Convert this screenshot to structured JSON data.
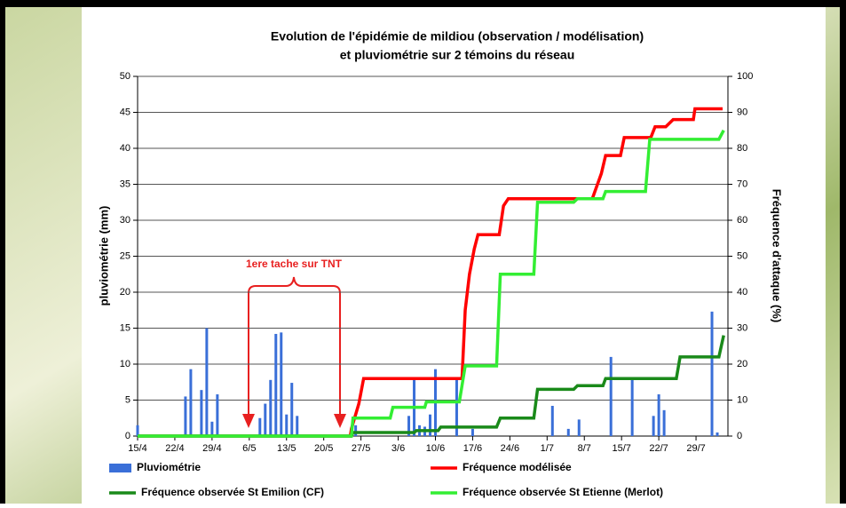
{
  "chart_data": {
    "type": "bar-line",
    "title": "Evolution de l'épidémie de mildiou (observation / modélisation)",
    "subtitle": "et pluviométrie sur 2 témoins du réseau",
    "ylabel": "pluviométrie (mm)",
    "y2label": "Fréquence d'attaque (%)",
    "annotation": "1ere tache sur TNT",
    "xlim": [
      0,
      111
    ],
    "xticks": [
      {
        "value": 0,
        "label": "15/4"
      },
      {
        "value": 7,
        "label": "22/4"
      },
      {
        "value": 14,
        "label": "29/4"
      },
      {
        "value": 21,
        "label": "6/5"
      },
      {
        "value": 28,
        "label": "13/5"
      },
      {
        "value": 35,
        "label": "20/5"
      },
      {
        "value": 42,
        "label": "27/5"
      },
      {
        "value": 49,
        "label": "3/6"
      },
      {
        "value": 56,
        "label": "10/6"
      },
      {
        "value": 63,
        "label": "17/6"
      },
      {
        "value": 70,
        "label": "24/6"
      },
      {
        "value": 77,
        "label": "1/7"
      },
      {
        "value": 84,
        "label": "8/7"
      },
      {
        "value": 91,
        "label": "15/7"
      },
      {
        "value": 98,
        "label": "22/7"
      },
      {
        "value": 105,
        "label": "29/7"
      }
    ],
    "ylim": [
      0,
      50
    ],
    "yticks": [
      0,
      5,
      10,
      15,
      20,
      25,
      30,
      35,
      40,
      45,
      50
    ],
    "y2lim": [
      0,
      100
    ],
    "y2ticks": [
      0,
      10,
      20,
      30,
      40,
      50,
      60,
      70,
      80,
      90,
      100
    ],
    "grid": true,
    "series": [
      {
        "name": "Pluviométrie",
        "type": "bar",
        "color": "#3a6fd8",
        "x": [
          0,
          9,
          10,
          12,
          13,
          14,
          15,
          23,
          24,
          25,
          26,
          27,
          28,
          29,
          30,
          41,
          51,
          52,
          53,
          54,
          55,
          56,
          60,
          63,
          78,
          81,
          83,
          89,
          93,
          97,
          98,
          99,
          108,
          109
        ],
        "values": [
          1.5,
          5.5,
          9.3,
          6.4,
          15,
          2,
          5.8,
          2.5,
          4.5,
          7.8,
          14.2,
          14.4,
          3,
          7.4,
          2.8,
          1.5,
          2.8,
          7.8,
          1.5,
          1.3,
          3,
          9.3,
          7.8,
          1,
          4.2,
          1,
          2.3,
          11,
          7.8,
          2.8,
          5.8,
          3.6,
          17.3,
          0.5
        ]
      },
      {
        "name": "Fréquence modélisée",
        "type": "line",
        "axis": "y2",
        "color": "#ff0000",
        "x": [
          0,
          40,
          40.2,
          40.8,
          41.6,
          42.5,
          61,
          61.6,
          62.4,
          63.3,
          64,
          68,
          68.8,
          69.7,
          85.5,
          87.2,
          88,
          90.8,
          91.5,
          96.5,
          97.3,
          99.3,
          100.7,
          104.5,
          104.8,
          110
        ],
        "values": [
          0,
          0,
          2,
          5,
          9,
          16,
          16,
          35,
          45,
          52,
          56,
          56,
          64,
          66,
          66,
          73,
          78,
          78,
          83,
          83,
          86,
          86,
          88,
          88,
          91,
          91
        ]
      },
      {
        "name": "Fréquence observée St Emilion (CF)",
        "type": "line",
        "axis": "y2",
        "color": "#1a8a1a",
        "x": [
          0,
          40.2,
          40.5,
          52,
          52.4,
          56.5,
          57,
          67.5,
          68.2,
          74.5,
          75.2,
          82,
          82.7,
          87.5,
          88,
          101.3,
          102,
          109.3,
          110.2
        ],
        "values": [
          0,
          0,
          1,
          1,
          1.5,
          1.5,
          2.5,
          2.5,
          5,
          5,
          13,
          13,
          14,
          14,
          16,
          16,
          22,
          22,
          28
        ]
      },
      {
        "name": "Fréquence observée St Etienne (Merlot)",
        "type": "line",
        "axis": "y2",
        "color": "#33ee33",
        "x": [
          0,
          40.2,
          40.5,
          47.5,
          48,
          54,
          54.3,
          60.5,
          61.6,
          67.5,
          68.2,
          74.5,
          75.2,
          82,
          82.7,
          87.5,
          88,
          95.5,
          96.3,
          109.3,
          110.2
        ],
        "values": [
          0,
          0,
          5,
          5,
          8,
          8,
          9.5,
          9.5,
          19.5,
          19.5,
          45,
          45,
          65,
          65,
          66,
          66,
          68,
          68,
          82.5,
          82.5,
          85
        ]
      }
    ]
  }
}
